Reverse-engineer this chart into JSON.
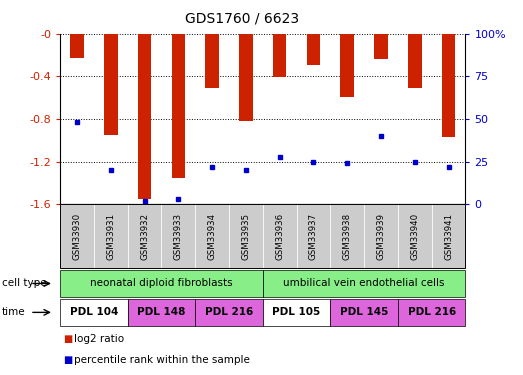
{
  "title": "GDS1760 / 6623",
  "samples": [
    "GSM33930",
    "GSM33931",
    "GSM33932",
    "GSM33933",
    "GSM33934",
    "GSM33935",
    "GSM33936",
    "GSM33937",
    "GSM33938",
    "GSM33939",
    "GSM33940",
    "GSM33941"
  ],
  "log2_ratio": [
    -0.23,
    -0.95,
    -1.55,
    -1.35,
    -0.51,
    -0.82,
    -0.41,
    -0.29,
    -0.59,
    -0.24,
    -0.51,
    -0.97
  ],
  "percentile_rank": [
    48,
    20,
    2,
    3,
    22,
    20,
    28,
    25,
    24,
    40,
    25,
    22
  ],
  "ylim_left": [
    -1.6,
    0.0
  ],
  "yticks_left": [
    -1.6,
    -1.2,
    -0.8,
    -0.4,
    0.0
  ],
  "ytick_labels_left": [
    "-1.6",
    "-1.2",
    "-0.8",
    "-0.4",
    "-0"
  ],
  "yticks_right": [
    0,
    25,
    50,
    75,
    100
  ],
  "ytick_labels_right": [
    "0",
    "25",
    "50",
    "75",
    "100%"
  ],
  "bar_color": "#cc2200",
  "dot_color": "#0000cc",
  "bar_width": 0.4,
  "cell_type_groups": [
    {
      "label": "neonatal diploid fibroblasts",
      "start": 0,
      "end": 6,
      "color": "#88ee88"
    },
    {
      "label": "umbilical vein endothelial cells",
      "start": 6,
      "end": 12,
      "color": "#88ee88"
    }
  ],
  "time_groups": [
    {
      "label": "PDL 104",
      "start": 0,
      "end": 2,
      "color": "#ffffff"
    },
    {
      "label": "PDL 148",
      "start": 2,
      "end": 4,
      "color": "#dd66dd"
    },
    {
      "label": "PDL 216",
      "start": 4,
      "end": 6,
      "color": "#dd66dd"
    },
    {
      "label": "PDL 105",
      "start": 6,
      "end": 8,
      "color": "#ffffff"
    },
    {
      "label": "PDL 145",
      "start": 8,
      "end": 10,
      "color": "#dd66dd"
    },
    {
      "label": "PDL 216",
      "start": 10,
      "end": 12,
      "color": "#dd66dd"
    }
  ],
  "legend_items": [
    {
      "label": "log2 ratio",
      "color": "#cc2200"
    },
    {
      "label": "percentile rank within the sample",
      "color": "#0000cc"
    }
  ],
  "xtick_bg_color": "#cccccc",
  "left_axis_color": "#cc2200",
  "right_axis_color": "#0000cc"
}
